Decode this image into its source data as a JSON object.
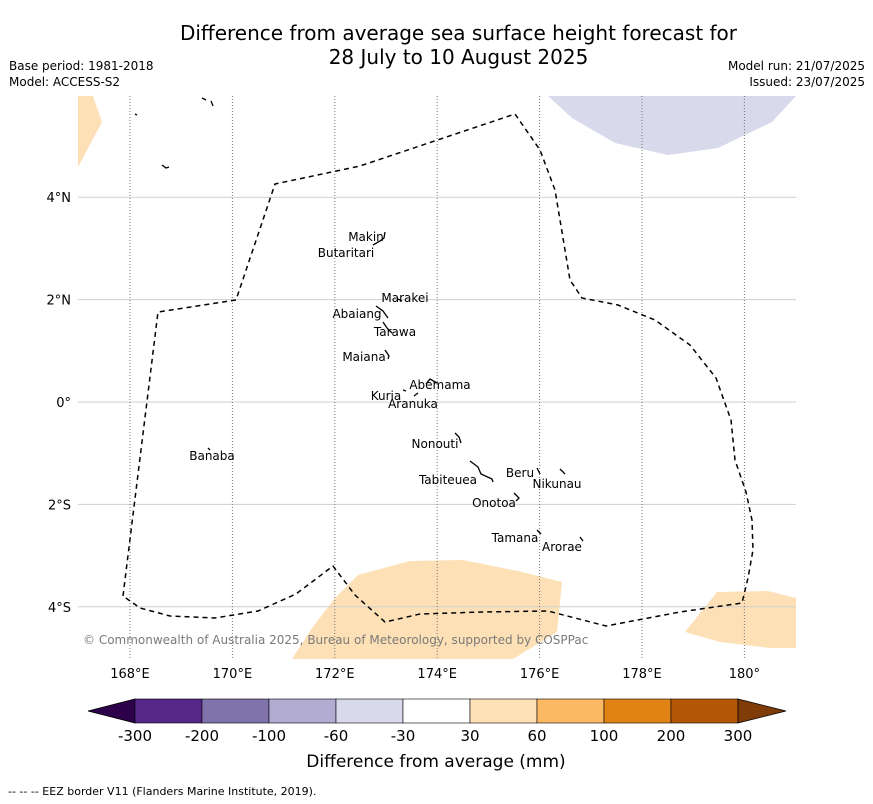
{
  "title_line1": "Difference from average sea surface height forecast for",
  "title_line2": "28 July to 10 August 2025",
  "base_period": "Base period: 1981-2018",
  "model": "Model: ACCESS-S2",
  "model_run": "Model run: 21/07/2025",
  "issued": "Issued: 23/07/2025",
  "copyright": "© Commonwealth of Australia 2025, Bureau of Meteorology, supported by COSPPac",
  "footer": "--  --  -- EEZ border V11 (Flanders Marine Institute, 2019).",
  "colorbar": {
    "label": "Difference from average (mm)",
    "ticks": [
      "-300",
      "-200",
      "-100",
      "-60",
      "-30",
      "30",
      "60",
      "100",
      "200",
      "300"
    ],
    "colors": [
      "#2d004b",
      "#542788",
      "#8073ac",
      "#b2abd2",
      "#d8daeb",
      "#ffffff",
      "#fee0b6",
      "#fdb863",
      "#e08214",
      "#b35806",
      "#7f3b08"
    ]
  },
  "map": {
    "lon_labels": [
      "168°E",
      "170°E",
      "172°E",
      "174°E",
      "176°E",
      "178°E",
      "180°"
    ],
    "lon_values": [
      168,
      170,
      172,
      174,
      176,
      178,
      180
    ],
    "lat_labels": [
      "4°N",
      "2°N",
      "0°",
      "2°S",
      "4°S"
    ],
    "lat_values": [
      4,
      2,
      0,
      -2,
      -4
    ],
    "islands": [
      {
        "name": "Makin",
        "lon": 173.0,
        "lat": 3.2
      },
      {
        "name": "Butaritari",
        "lon": 172.9,
        "lat": 3.05
      },
      {
        "name": "Marakei",
        "lon": 173.3,
        "lat": 2.0
      },
      {
        "name": "Abaiang",
        "lon": 172.9,
        "lat": 1.85
      },
      {
        "name": "Tarawa",
        "lon": 173.0,
        "lat": 1.4
      },
      {
        "name": "Maiana",
        "lon": 173.0,
        "lat": 0.95
      },
      {
        "name": "Abemama",
        "lon": 173.85,
        "lat": 0.4
      },
      {
        "name": "Kuria",
        "lon": 173.4,
        "lat": 0.23
      },
      {
        "name": "Aranuka",
        "lon": 173.6,
        "lat": 0.17
      },
      {
        "name": "Banaba",
        "lon": 169.53,
        "lat": -0.87
      },
      {
        "name": "Nonouti",
        "lon": 174.45,
        "lat": -0.65
      },
      {
        "name": "Tabiteuea",
        "lon": 174.9,
        "lat": -1.3
      },
      {
        "name": "Beru",
        "lon": 176.0,
        "lat": -1.33
      },
      {
        "name": "Nikunau",
        "lon": 176.45,
        "lat": -1.35
      },
      {
        "name": "Onotoa",
        "lon": 175.55,
        "lat": -1.8
      },
      {
        "name": "Tamana",
        "lon": 175.98,
        "lat": -2.5
      },
      {
        "name": "Arorae",
        "lon": 176.82,
        "lat": -2.65
      }
    ]
  }
}
